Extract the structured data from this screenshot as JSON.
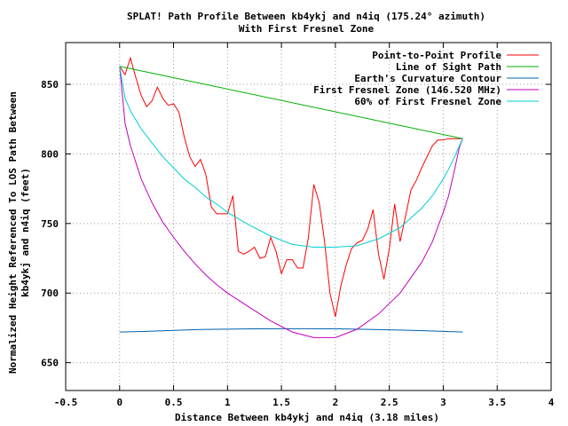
{
  "chart_data": {
    "type": "line",
    "title": "SPLAT! Path Profile Between kb4ykj and n4iq (175.24° azimuth)",
    "subtitle": "With First Fresnel Zone",
    "xlabel": "Distance Between kb4ykj and n4iq (3.18 miles)",
    "ylabel_line1": "Normalized Height Referenced To LOS Path Between",
    "ylabel_line2": "kb4ykj and n4iq (feet)",
    "xlim": [
      -0.5,
      4
    ],
    "ylim": [
      630,
      880
    ],
    "x_ticks": [
      -0.5,
      0,
      0.5,
      1,
      1.5,
      2,
      2.5,
      3,
      3.5,
      4
    ],
    "x_tick_labels": [
      "-0.5",
      "0",
      "0.5",
      "1",
      "1.5",
      "2",
      "2.5",
      "3",
      "3.5",
      "4"
    ],
    "y_ticks": [
      650,
      700,
      750,
      800,
      850
    ],
    "y_tick_labels": [
      "650",
      "700",
      "750",
      "800",
      "850"
    ],
    "grid": true,
    "legend_position": "top-right",
    "series": [
      {
        "name": "Point-to-Point Profile",
        "color": "#ff0000",
        "x": [
          0,
          0.05,
          0.1,
          0.15,
          0.2,
          0.25,
          0.3,
          0.35,
          0.4,
          0.45,
          0.5,
          0.55,
          0.6,
          0.65,
          0.7,
          0.75,
          0.8,
          0.85,
          0.9,
          0.95,
          1.0,
          1.05,
          1.1,
          1.15,
          1.2,
          1.25,
          1.3,
          1.35,
          1.4,
          1.45,
          1.5,
          1.55,
          1.6,
          1.65,
          1.7,
          1.75,
          1.8,
          1.85,
          1.9,
          1.95,
          2.0,
          2.05,
          2.1,
          2.15,
          2.2,
          2.25,
          2.3,
          2.35,
          2.4,
          2.45,
          2.5,
          2.55,
          2.6,
          2.65,
          2.7,
          2.75,
          2.8,
          2.85,
          2.9,
          2.95,
          3.0,
          3.05,
          3.1,
          3.15,
          3.18
        ],
        "values": [
          863,
          857,
          869,
          855,
          842,
          834,
          838,
          848,
          840,
          835,
          836,
          830,
          812,
          798,
          791,
          796,
          785,
          762,
          757,
          757,
          757,
          770,
          730,
          728,
          730,
          733,
          725,
          726,
          740,
          730,
          714,
          724,
          724,
          718,
          718,
          740,
          778,
          765,
          737,
          700,
          683,
          705,
          720,
          732,
          736,
          738,
          746,
          760,
          728,
          710,
          732,
          764,
          737,
          755,
          774,
          781,
          790,
          798,
          806,
          810,
          810,
          811,
          811,
          811,
          811
        ]
      },
      {
        "name": "Line of Sight Path",
        "color": "#00b000",
        "x": [
          0,
          3.18
        ],
        "values": [
          863,
          811
        ]
      },
      {
        "name": "Earth's Curvature Contour",
        "color": "#0060ad",
        "x": [
          0,
          0.25,
          0.5,
          0.75,
          1.0,
          1.25,
          1.5,
          1.75,
          2.0,
          2.25,
          2.5,
          2.75,
          3.0,
          3.18
        ],
        "values": [
          672,
          672.5,
          673.2,
          673.8,
          674.1,
          674.3,
          674.4,
          674.4,
          674.3,
          674.0,
          673.6,
          673.1,
          672.5,
          672
        ]
      },
      {
        "name": "First Fresnel Zone (146.520 MHz)",
        "color": "#c000c0",
        "x": [
          0,
          0.05,
          0.1,
          0.2,
          0.3,
          0.4,
          0.5,
          0.6,
          0.7,
          0.8,
          0.9,
          1.0,
          1.2,
          1.4,
          1.6,
          1.8,
          2.0,
          2.2,
          2.4,
          2.6,
          2.8,
          2.9,
          3.0,
          3.05,
          3.1,
          3.15,
          3.18
        ],
        "values": [
          863,
          822,
          806,
          782,
          765,
          751,
          740,
          730,
          721,
          713,
          706,
          700,
          690,
          680,
          672,
          668,
          668,
          674,
          685,
          700,
          722,
          737,
          758,
          770,
          787,
          805,
          811
        ]
      },
      {
        "name": "60% of First Fresnel Zone",
        "color": "#00d0d0",
        "x": [
          0,
          0.05,
          0.1,
          0.2,
          0.3,
          0.4,
          0.5,
          0.6,
          0.7,
          0.8,
          0.9,
          1.0,
          1.2,
          1.4,
          1.6,
          1.8,
          2.0,
          2.2,
          2.4,
          2.6,
          2.8,
          2.9,
          3.0,
          3.05,
          3.1,
          3.15,
          3.18
        ],
        "values": [
          863,
          840,
          831,
          818,
          808,
          798,
          790,
          782,
          776,
          769,
          764,
          758,
          749,
          741,
          735,
          733,
          733,
          734,
          739,
          747,
          761,
          770,
          782,
          789,
          797,
          806,
          811
        ]
      }
    ]
  }
}
